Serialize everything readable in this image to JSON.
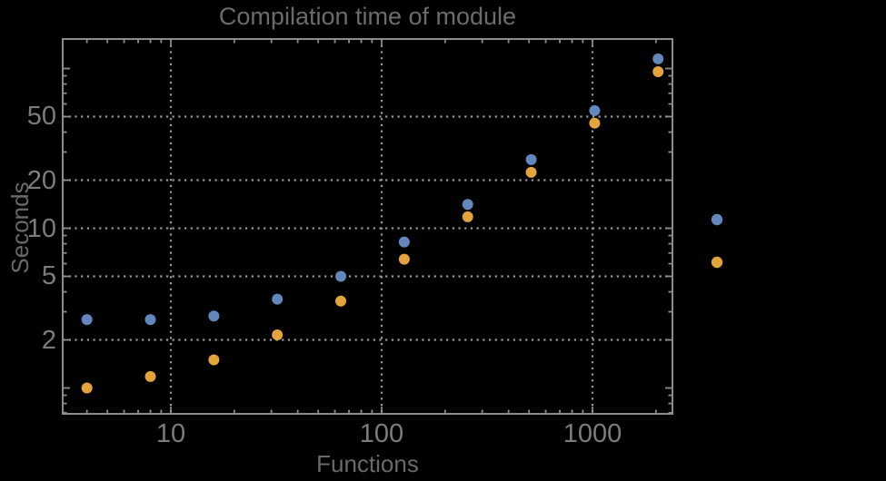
{
  "title": "Compilation time of module",
  "axes": {
    "x_label": "Functions",
    "y_label": "Seconds"
  },
  "chart_data": {
    "type": "scatter",
    "x_scale": "log",
    "y_scale": "log",
    "x": [
      4,
      8,
      16,
      32,
      64,
      128,
      256,
      512,
      1024,
      2048
    ],
    "series": [
      {
        "id": "blue-series",
        "color": "#6287BC",
        "values": [
          2.68,
          2.68,
          2.82,
          3.6,
          5.0,
          8.2,
          14.1,
          26.9,
          54.5,
          115
        ]
      },
      {
        "id": "orange-series",
        "color": "#E5A33B",
        "values": [
          1.0,
          1.18,
          1.5,
          2.15,
          3.5,
          6.4,
          11.8,
          22.4,
          45.5,
          95.5
        ]
      }
    ],
    "x_ticks": [
      {
        "value": 10,
        "label": "10"
      },
      {
        "value": 100,
        "label": "100"
      },
      {
        "value": 1000,
        "label": "1000"
      }
    ],
    "y_ticks": [
      {
        "value": 2,
        "label": "2"
      },
      {
        "value": 5,
        "label": "5"
      },
      {
        "value": 10,
        "label": "10"
      },
      {
        "value": 20,
        "label": "20"
      },
      {
        "value": 50,
        "label": "50"
      }
    ],
    "x_unlabeled_major_ticks": [],
    "y_unlabeled_major_ticks": [
      1,
      100
    ],
    "x_range": [
      3.07,
      2400
    ],
    "y_range": [
      0.7,
      153
    ],
    "grid": {
      "style": "dotted",
      "x_values": [
        10,
        100,
        1000
      ],
      "y_values": [
        2,
        5,
        10,
        20,
        50
      ]
    },
    "legend": {
      "position": "outside-right",
      "labels_visible": false,
      "entries": [
        {
          "color": "#6287BC"
        },
        {
          "color": "#E5A33B"
        }
      ]
    }
  },
  "colors": {
    "background": "#000000",
    "frame": "#8C8C8C",
    "grid": "#999999",
    "tick_label": "#7C7C7C",
    "title": "#6B6B6B",
    "axis_label": "#696969"
  }
}
